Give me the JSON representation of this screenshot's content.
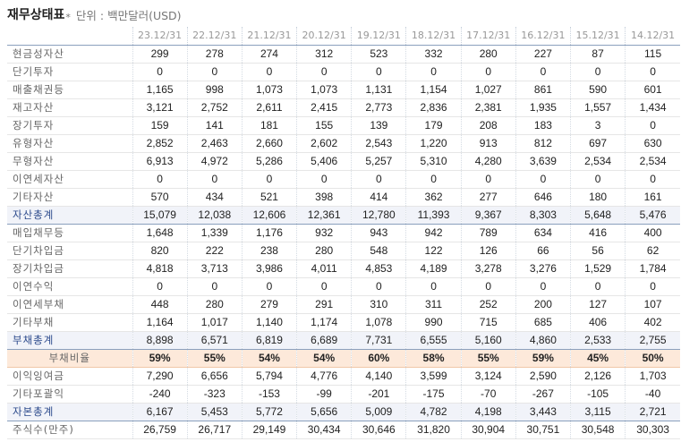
{
  "header": {
    "title": "재무상태표",
    "star": "*",
    "unit": "단위 : 백만달러(USD)"
  },
  "columns": [
    "23.12/31",
    "22.12/31",
    "21.12/31",
    "20.12/31",
    "19.12/31",
    "18.12/31",
    "17.12/31",
    "16.12/31",
    "15.12/31",
    "14.12/31"
  ],
  "rows": [
    {
      "label": "현금성자산",
      "type": "normal",
      "values": [
        "299",
        "278",
        "274",
        "312",
        "523",
        "332",
        "280",
        "227",
        "87",
        "115"
      ]
    },
    {
      "label": "단기투자",
      "type": "normal",
      "values": [
        "0",
        "0",
        "0",
        "0",
        "0",
        "0",
        "0",
        "0",
        "0",
        "0"
      ]
    },
    {
      "label": "매출채권등",
      "type": "normal",
      "values": [
        "1,165",
        "998",
        "1,073",
        "1,073",
        "1,131",
        "1,154",
        "1,027",
        "861",
        "590",
        "601"
      ]
    },
    {
      "label": "재고자산",
      "type": "normal",
      "values": [
        "3,121",
        "2,752",
        "2,611",
        "2,415",
        "2,773",
        "2,836",
        "2,381",
        "1,935",
        "1,557",
        "1,434"
      ]
    },
    {
      "label": "장기투자",
      "type": "normal",
      "values": [
        "159",
        "141",
        "181",
        "155",
        "139",
        "179",
        "208",
        "183",
        "3",
        "0"
      ]
    },
    {
      "label": "유형자산",
      "type": "normal",
      "values": [
        "2,852",
        "2,463",
        "2,660",
        "2,602",
        "2,543",
        "1,220",
        "913",
        "812",
        "697",
        "630"
      ]
    },
    {
      "label": "무형자산",
      "type": "normal",
      "values": [
        "6,913",
        "4,972",
        "5,286",
        "5,406",
        "5,257",
        "5,310",
        "4,280",
        "3,639",
        "2,534",
        "2,534"
      ]
    },
    {
      "label": "이연세자산",
      "type": "normal",
      "values": [
        "0",
        "0",
        "0",
        "0",
        "0",
        "0",
        "0",
        "0",
        "0",
        "0"
      ]
    },
    {
      "label": "기타자산",
      "type": "normal",
      "values": [
        "570",
        "434",
        "521",
        "398",
        "414",
        "362",
        "277",
        "646",
        "180",
        "161"
      ]
    },
    {
      "label": "자산총계",
      "type": "total",
      "values": [
        "15,079",
        "12,038",
        "12,606",
        "12,361",
        "12,780",
        "11,393",
        "9,367",
        "8,303",
        "5,648",
        "5,476"
      ]
    },
    {
      "label": "매입채무등",
      "type": "normal",
      "values": [
        "1,648",
        "1,339",
        "1,176",
        "932",
        "943",
        "942",
        "789",
        "634",
        "416",
        "400"
      ]
    },
    {
      "label": "단기차입금",
      "type": "normal",
      "values": [
        "820",
        "222",
        "238",
        "280",
        "548",
        "122",
        "126",
        "66",
        "56",
        "62"
      ]
    },
    {
      "label": "장기차입금",
      "type": "normal",
      "values": [
        "4,818",
        "3,713",
        "3,986",
        "4,011",
        "4,853",
        "4,189",
        "3,278",
        "3,276",
        "1,529",
        "1,784"
      ]
    },
    {
      "label": "이연수익",
      "type": "normal",
      "values": [
        "0",
        "0",
        "0",
        "0",
        "0",
        "0",
        "0",
        "0",
        "0",
        "0"
      ]
    },
    {
      "label": "이연세부채",
      "type": "normal",
      "values": [
        "448",
        "280",
        "279",
        "291",
        "310",
        "311",
        "252",
        "200",
        "127",
        "107"
      ]
    },
    {
      "label": "기타부채",
      "type": "normal",
      "values": [
        "1,164",
        "1,017",
        "1,140",
        "1,174",
        "1,078",
        "990",
        "715",
        "685",
        "406",
        "402"
      ]
    },
    {
      "label": "부채총계",
      "type": "total",
      "values": [
        "8,898",
        "6,571",
        "6,819",
        "6,689",
        "7,731",
        "6,555",
        "5,160",
        "4,860",
        "2,533",
        "2,755"
      ]
    },
    {
      "label": "부채비율",
      "type": "ratio",
      "values": [
        "59%",
        "55%",
        "54%",
        "54%",
        "60%",
        "58%",
        "55%",
        "59%",
        "45%",
        "50%"
      ]
    },
    {
      "label": "이익잉여금",
      "type": "normal",
      "values": [
        "7,290",
        "6,656",
        "5,794",
        "4,776",
        "4,140",
        "3,599",
        "3,124",
        "2,590",
        "2,126",
        "1,703"
      ]
    },
    {
      "label": "기타포괄익",
      "type": "normal",
      "values": [
        "-240",
        "-323",
        "-153",
        "-99",
        "-201",
        "-175",
        "-70",
        "-267",
        "-105",
        "-40"
      ]
    },
    {
      "label": "자본총계",
      "type": "total",
      "values": [
        "6,167",
        "5,453",
        "5,772",
        "5,656",
        "5,009",
        "4,782",
        "4,198",
        "3,443",
        "3,115",
        "2,721"
      ]
    },
    {
      "label": "주식수(만주)",
      "type": "normal",
      "values": [
        "26,759",
        "26,717",
        "29,149",
        "30,434",
        "30,646",
        "31,820",
        "30,904",
        "30,751",
        "30,548",
        "30,303"
      ]
    }
  ]
}
